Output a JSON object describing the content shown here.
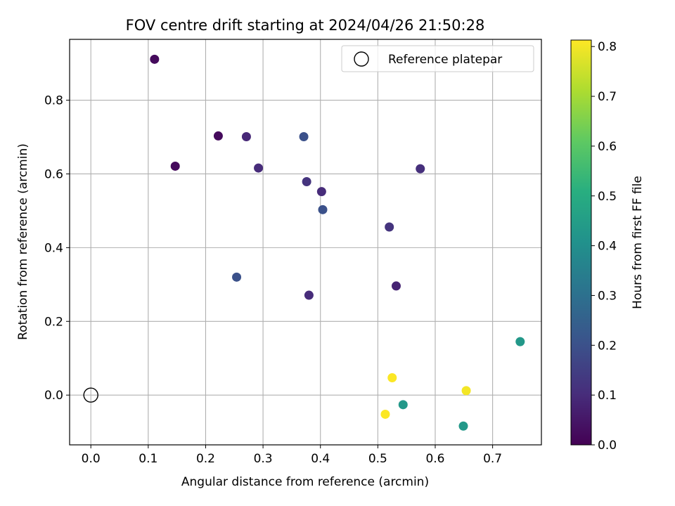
{
  "chart_data": {
    "type": "scatter",
    "title": "FOV centre drift starting at 2024/04/26 21:50:28",
    "xlabel": "Angular distance from reference (arcmin)",
    "ylabel": "Rotation from reference (arcmin)",
    "xlim": [
      -0.037,
      0.785
    ],
    "ylim": [
      -0.135,
      0.965
    ],
    "xticks": [
      0.0,
      0.1,
      0.2,
      0.3,
      0.4,
      0.5,
      0.6,
      0.7
    ],
    "yticks": [
      0.0,
      0.2,
      0.4,
      0.6,
      0.8
    ],
    "grid": true,
    "legend": {
      "position": "top-right",
      "entries": [
        "Reference platepar"
      ]
    },
    "reference_point": {
      "x": 0.0,
      "y": 0.0,
      "label": "Reference platepar",
      "marker": "open-circle"
    },
    "colorbar": {
      "label": "Hours from first FF file",
      "colormap": "viridis",
      "range": [
        0.0,
        0.813
      ],
      "ticks": [
        0.0,
        0.1,
        0.2,
        0.3,
        0.4,
        0.5,
        0.6,
        0.7,
        0.8
      ]
    },
    "points": [
      {
        "x": 0.111,
        "y": 0.911,
        "hours": 0.02
      },
      {
        "x": 0.147,
        "y": 0.621,
        "hours": 0.02
      },
      {
        "x": 0.222,
        "y": 0.703,
        "hours": 0.02
      },
      {
        "x": 0.271,
        "y": 0.701,
        "hours": 0.09
      },
      {
        "x": 0.292,
        "y": 0.616,
        "hours": 0.1
      },
      {
        "x": 0.371,
        "y": 0.701,
        "hours": 0.2
      },
      {
        "x": 0.376,
        "y": 0.579,
        "hours": 0.12
      },
      {
        "x": 0.402,
        "y": 0.552,
        "hours": 0.1
      },
      {
        "x": 0.404,
        "y": 0.503,
        "hours": 0.2
      },
      {
        "x": 0.574,
        "y": 0.614,
        "hours": 0.11
      },
      {
        "x": 0.52,
        "y": 0.456,
        "hours": 0.12
      },
      {
        "x": 0.254,
        "y": 0.32,
        "hours": 0.2
      },
      {
        "x": 0.38,
        "y": 0.271,
        "hours": 0.1
      },
      {
        "x": 0.532,
        "y": 0.296,
        "hours": 0.08
      },
      {
        "x": 0.748,
        "y": 0.145,
        "hours": 0.43
      },
      {
        "x": 0.525,
        "y": 0.047,
        "hours": 0.81
      },
      {
        "x": 0.654,
        "y": 0.012,
        "hours": 0.8
      },
      {
        "x": 0.544,
        "y": -0.026,
        "hours": 0.43
      },
      {
        "x": 0.513,
        "y": -0.052,
        "hours": 0.81
      },
      {
        "x": 0.649,
        "y": -0.084,
        "hours": 0.43
      }
    ]
  }
}
